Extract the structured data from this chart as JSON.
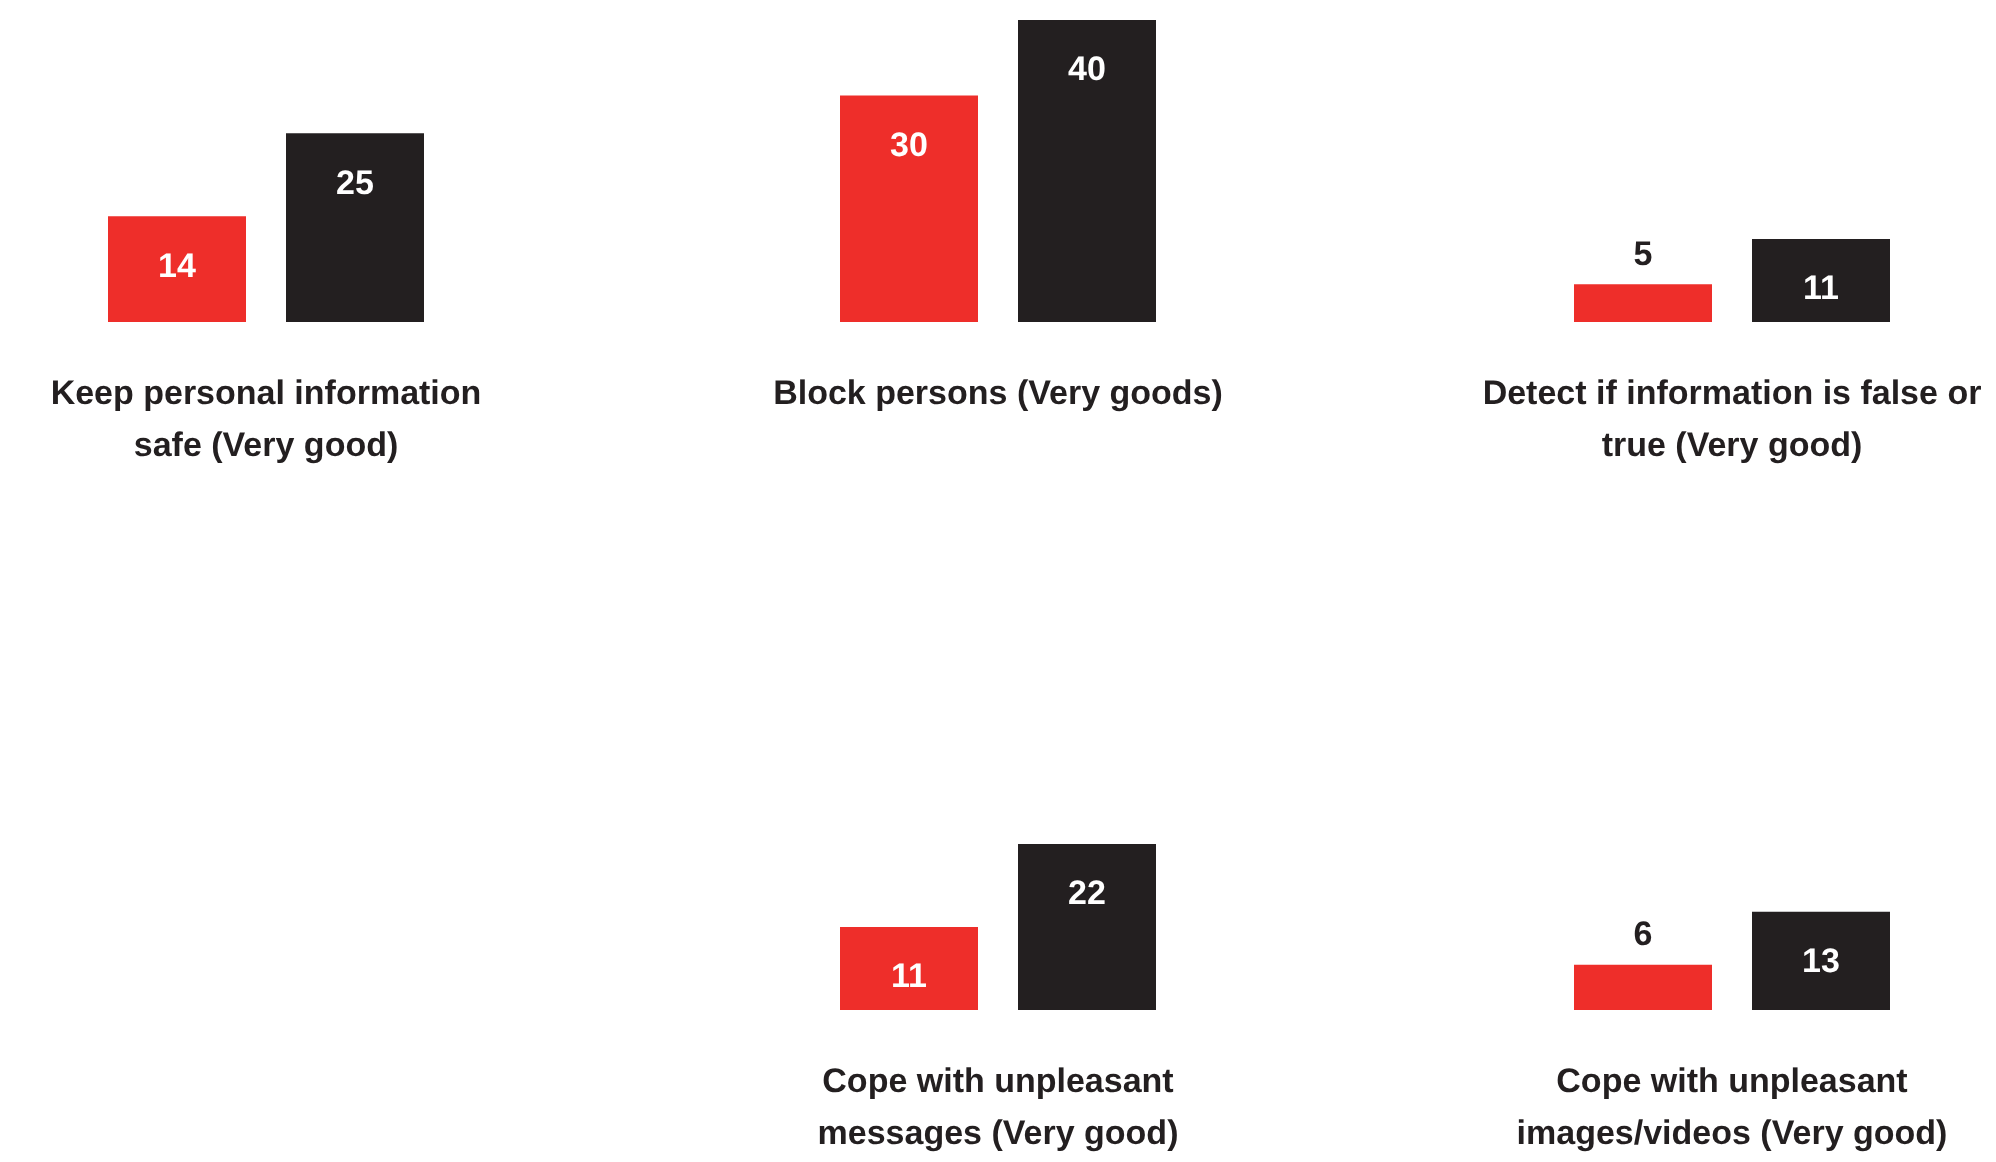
{
  "chart_data": [
    {
      "type": "bar",
      "xlabel": "Keep personal information safe (Very good)",
      "categories": [
        null,
        null
      ],
      "values": [
        14,
        25
      ],
      "colors": [
        "#ee2e2a",
        "#231f20"
      ],
      "tick_labels": false,
      "data_labels": true
    },
    {
      "type": "bar",
      "xlabel": "Block persons (Very goods)",
      "categories": [
        null,
        null
      ],
      "values": [
        30,
        40
      ],
      "colors": [
        "#ee2e2a",
        "#231f20"
      ],
      "tick_labels": false,
      "data_labels": true
    },
    {
      "type": "bar",
      "xlabel": "Detect if information is false or true (Very good)",
      "categories": [
        null,
        null
      ],
      "values": [
        5,
        11
      ],
      "colors": [
        "#ee2e2a",
        "#231f20"
      ],
      "tick_labels": false,
      "data_labels": true
    },
    {
      "type": "bar",
      "xlabel": "Cope with unpleasant messages (Very good)",
      "categories": [
        null,
        null
      ],
      "values": [
        11,
        22
      ],
      "colors": [
        "#ee2e2a",
        "#231f20"
      ],
      "tick_labels": false,
      "data_labels": true
    },
    {
      "type": "bar",
      "xlabel": "Cope with unpleasant images/videos (Very good)",
      "categories": [
        null,
        null
      ],
      "values": [
        6,
        13
      ],
      "colors": [
        "#ee2e2a",
        "#231f20"
      ],
      "tick_labels": false,
      "data_labels": true
    }
  ]
}
